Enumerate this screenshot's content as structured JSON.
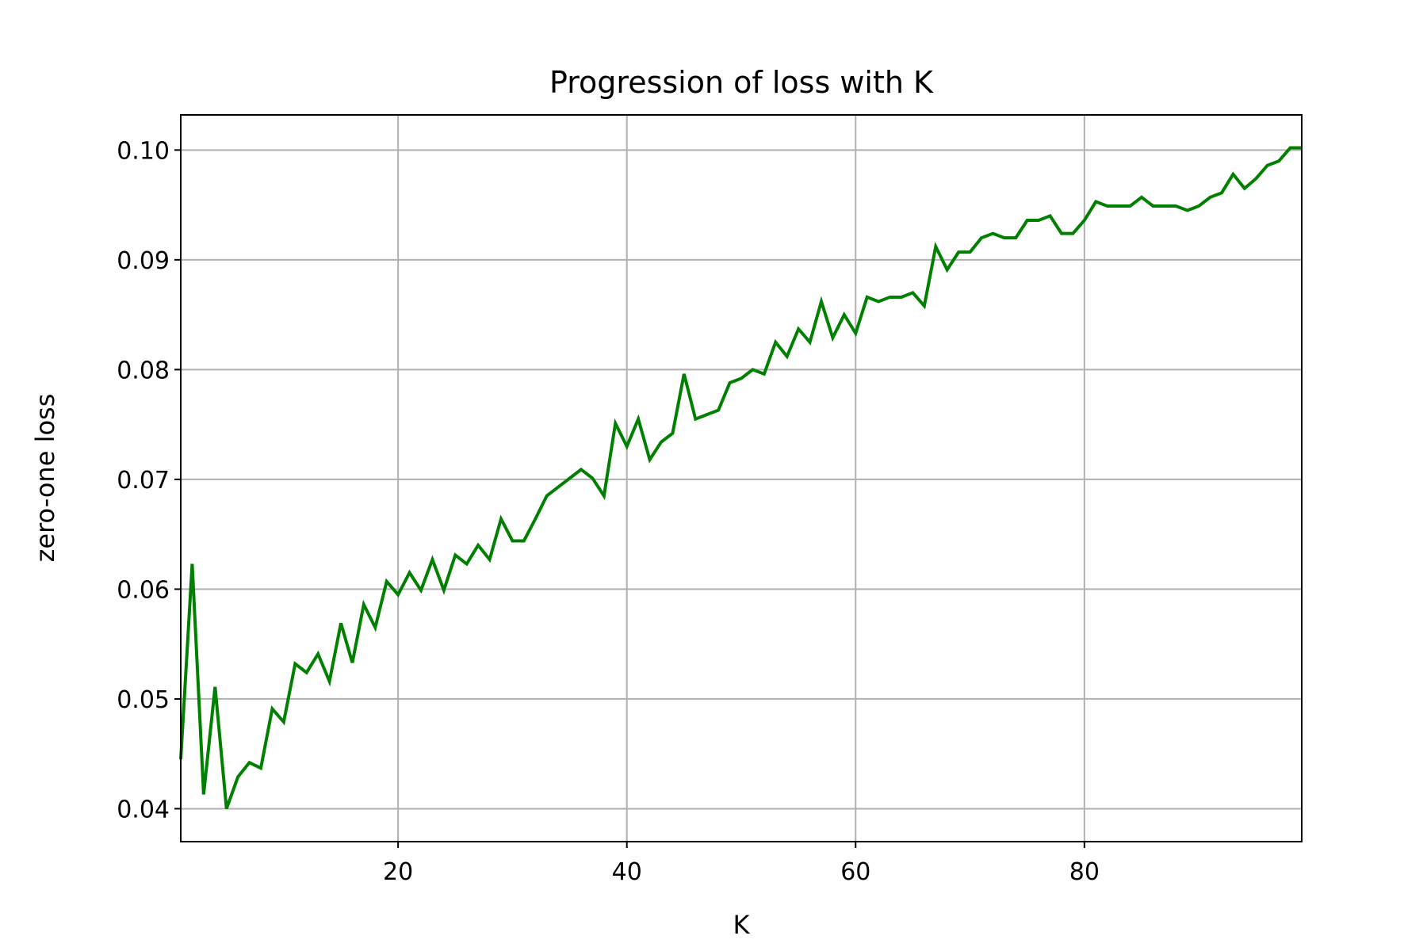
{
  "chart_data": {
    "type": "line",
    "title": "Progression of loss with K",
    "xlabel": "K",
    "ylabel": "zero-one loss",
    "xlim": [
      1,
      99
    ],
    "ylim": [
      0.037,
      0.1032
    ],
    "x_ticks": [
      20,
      40,
      60,
      80
    ],
    "x_tick_labels": [
      "20",
      "40",
      "60",
      "80"
    ],
    "y_ticks": [
      0.04,
      0.05,
      0.06,
      0.07,
      0.08,
      0.09,
      0.1
    ],
    "y_tick_labels": [
      "0.04",
      "0.05",
      "0.06",
      "0.07",
      "0.08",
      "0.09",
      "0.10"
    ],
    "grid": true,
    "line_color": "#008000",
    "grid_color": "#b0b0b0",
    "series": [
      {
        "x": [
          1,
          2,
          3,
          4,
          5,
          6,
          7,
          8,
          9,
          10,
          11,
          12,
          13,
          14,
          15,
          16,
          17,
          18,
          19,
          20,
          21,
          22,
          23,
          24,
          25,
          26,
          27,
          28,
          29,
          30,
          31,
          32,
          33,
          34,
          35,
          36,
          37,
          38,
          39,
          40,
          41,
          42,
          43,
          44,
          45,
          46,
          47,
          48,
          49,
          50,
          51,
          52,
          53,
          54,
          55,
          56,
          57,
          58,
          59,
          60,
          61,
          62,
          63,
          64,
          65,
          66,
          67,
          68,
          69,
          70,
          71,
          72,
          73,
          74,
          75,
          76,
          77,
          78,
          79,
          80,
          81,
          82,
          83,
          84,
          85,
          86,
          87,
          88,
          89,
          90,
          91,
          92,
          93,
          94,
          95,
          96,
          97,
          98,
          99
        ],
        "values": [
          0.0445,
          0.0623,
          0.0413,
          0.0511,
          0.04,
          0.0429,
          0.0442,
          0.0437,
          0.0491,
          0.0479,
          0.0532,
          0.0524,
          0.0541,
          0.0516,
          0.0569,
          0.0533,
          0.0586,
          0.0565,
          0.0607,
          0.0595,
          0.0615,
          0.0599,
          0.0627,
          0.0599,
          0.0631,
          0.0623,
          0.064,
          0.0627,
          0.0664,
          0.0644,
          0.0644,
          0.0664,
          0.0685,
          0.0693,
          0.0701,
          0.0709,
          0.0701,
          0.0685,
          0.0751,
          0.073,
          0.0755,
          0.0718,
          0.0734,
          0.0742,
          0.0796,
          0.0755,
          0.0759,
          0.0763,
          0.0788,
          0.0792,
          0.08,
          0.0796,
          0.0825,
          0.0812,
          0.0837,
          0.0825,
          0.0862,
          0.0829,
          0.085,
          0.0833,
          0.0866,
          0.0862,
          0.0866,
          0.0866,
          0.087,
          0.0858,
          0.0912,
          0.0891,
          0.0907,
          0.0907,
          0.092,
          0.0924,
          0.092,
          0.092,
          0.0936,
          0.0936,
          0.094,
          0.0924,
          0.0924,
          0.0936,
          0.0953,
          0.0949,
          0.0949,
          0.0949,
          0.0957,
          0.0949,
          0.0949,
          0.0949,
          0.0945,
          0.0949,
          0.0957,
          0.0961,
          0.0978,
          0.0965,
          0.0974,
          0.0986,
          0.099,
          0.1002,
          0.1002
        ]
      }
    ]
  }
}
